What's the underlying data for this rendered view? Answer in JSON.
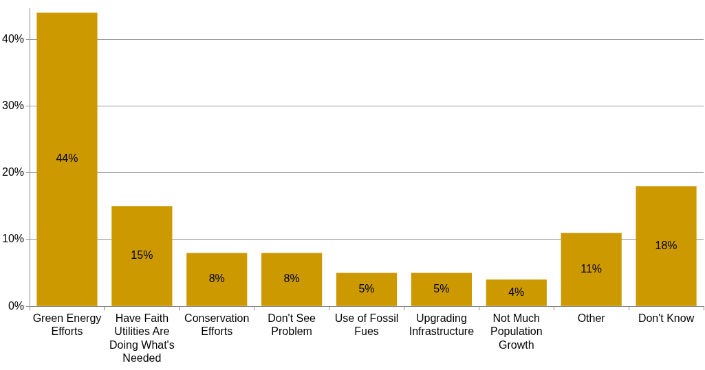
{
  "chart_data": {
    "type": "bar",
    "categories": [
      "Green Energy Efforts",
      "Have Faith Utilities Are Doing What's Needed",
      "Conservation Efforts",
      "Don't See Problem",
      "Use of Fossil Fues",
      "Upgrading Infrastructure",
      "Not Much Population Growth",
      "Other",
      "Don't Know"
    ],
    "values": [
      44,
      15,
      8,
      8,
      5,
      5,
      4,
      11,
      18
    ],
    "value_labels": [
      "44%",
      "15%",
      "8%",
      "8%",
      "5%",
      "5%",
      "4%",
      "11%",
      "18%"
    ],
    "color": "#cc9900",
    "ylim": [
      0,
      44.6
    ],
    "yticks": [
      {
        "value": 0,
        "label": "0%"
      },
      {
        "value": 10,
        "label": "10%"
      },
      {
        "value": 20,
        "label": "20%"
      },
      {
        "value": 30,
        "label": "30%"
      },
      {
        "value": 40,
        "label": "40%"
      }
    ],
    "grid": "y",
    "legend": false
  }
}
